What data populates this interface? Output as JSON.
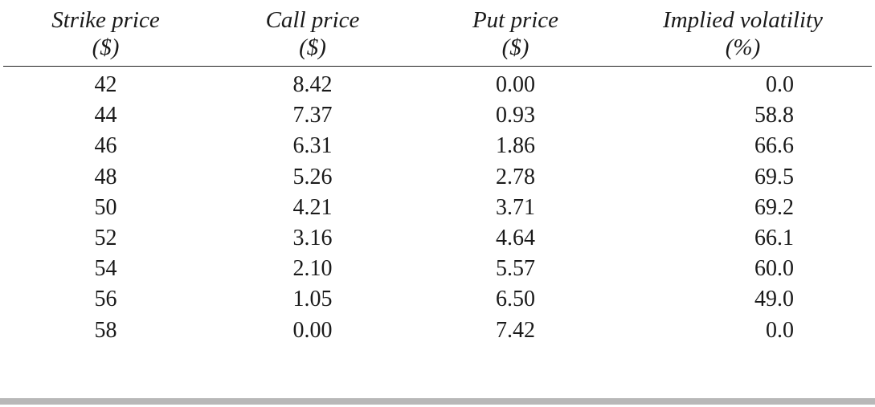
{
  "chart_data": {
    "type": "table",
    "columns": [
      {
        "line1": "Strike price",
        "line2": "($)"
      },
      {
        "line1": "Call price",
        "line2": "($)"
      },
      {
        "line1": "Put price",
        "line2": "($)"
      },
      {
        "line1": "Implied volatility",
        "line2": "(%)"
      }
    ],
    "rows": [
      [
        "42",
        "8.42",
        "0.00",
        "0.0"
      ],
      [
        "44",
        "7.37",
        "0.93",
        "58.8"
      ],
      [
        "46",
        "6.31",
        "1.86",
        "66.6"
      ],
      [
        "48",
        "5.26",
        "2.78",
        "69.5"
      ],
      [
        "50",
        "4.21",
        "3.71",
        "69.2"
      ],
      [
        "52",
        "3.16",
        "4.64",
        "66.1"
      ],
      [
        "54",
        "2.10",
        "5.57",
        "60.0"
      ],
      [
        "56",
        "1.05",
        "6.50",
        "49.0"
      ],
      [
        "58",
        "0.00",
        "7.42",
        "0.0"
      ]
    ]
  },
  "colors": {
    "text": "#1a1a1a",
    "header_rule": "#222222",
    "bottom_rule": "#b8b8b8"
  }
}
